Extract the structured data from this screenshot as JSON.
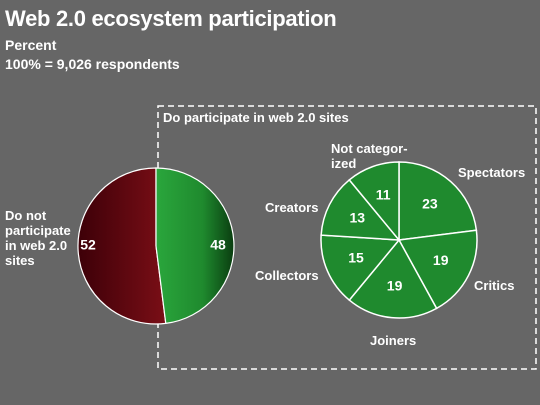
{
  "title": "Web 2.0 ecosystem participation",
  "subtitle_unit": "Percent",
  "subtitle_base": "100% = 9,026  respondents",
  "box_label": "Do participate in web 2.0 sites",
  "colors": {
    "background": "#666666",
    "not_participate": "#6b0a12",
    "participate": "#1f8a2e",
    "divider": "#ffffff"
  },
  "chart_data": [
    {
      "type": "pie",
      "slices": [
        {
          "label": "Do not participate in web 2.0 sites",
          "value": 52
        },
        {
          "label": "",
          "value": 48
        }
      ]
    },
    {
      "type": "pie",
      "title": "Do participate in web 2.0 sites",
      "slices": [
        {
          "label": "Spectators",
          "value": 23
        },
        {
          "label": "Critics",
          "value": 19
        },
        {
          "label": "Joiners",
          "value": 19
        },
        {
          "label": "Collectors",
          "value": 15
        },
        {
          "label": "Creators",
          "value": 13
        },
        {
          "label": "Not categor-ized",
          "value": 11
        }
      ]
    }
  ],
  "labels": {
    "not_participate": "Do not\nparticipate\nin web 2.0\nsites",
    "spectators": "Spectators",
    "critics": "Critics",
    "joiners": "Joiners",
    "collectors": "Collectors",
    "creators": "Creators",
    "not_categorized": "Not categor-\nized"
  }
}
